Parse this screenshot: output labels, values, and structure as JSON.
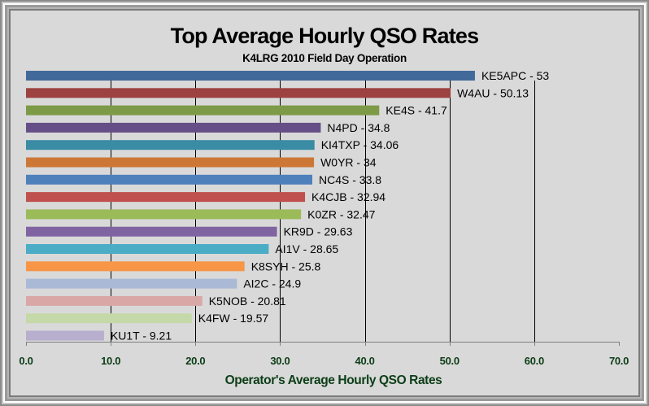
{
  "chart_data": {
    "type": "bar",
    "orientation": "horizontal",
    "title": "Top Average Hourly QSO Rates",
    "subtitle": "K4LRG 2010 Field Day Operation",
    "xlabel": "Operator's Average Hourly QSO Rates",
    "ylabel": "",
    "xlim": [
      0,
      70
    ],
    "x_ticks": [
      0,
      10,
      20,
      30,
      40,
      50,
      60,
      70
    ],
    "x_tick_labels": [
      "0.0",
      "10.0",
      "20.0",
      "30.0",
      "40.0",
      "50.0",
      "60.0",
      "70.0"
    ],
    "grid": "vertical major gridlines",
    "legend": "none",
    "categories": [
      "KE5APC",
      "W4AU",
      "KE4S",
      "N4PD",
      "KI4TXP",
      "W0YR",
      "NC4S",
      "K4CJB",
      "K0ZR",
      "KR9D",
      "AI1V",
      "K8SYH",
      "AI2C",
      "K5NOB",
      "K4FW",
      "KU1T"
    ],
    "values": [
      53,
      50.13,
      41.7,
      34.8,
      34.06,
      34,
      33.8,
      32.94,
      32.47,
      29.63,
      28.65,
      25.8,
      24.9,
      20.81,
      19.57,
      9.21
    ],
    "data_labels": [
      "KE5APC - 53",
      "W4AU - 50.13",
      "KE4S - 41.7",
      "N4PD - 34.8",
      "KI4TXP - 34.06",
      "W0YR - 34",
      "NC4S - 33.8",
      "K4CJB - 32.94",
      "K0ZR - 32.47",
      "KR9D - 29.63",
      "AI1V - 28.65",
      "K8SYH - 25.8",
      "AI2C - 24.9",
      "K5NOB - 20.81",
      "K4FW - 19.57",
      "KU1T - 9.21"
    ],
    "colors": [
      "#416a9b",
      "#9c4240",
      "#7d9a46",
      "#664f87",
      "#3a8ba4",
      "#cd7737",
      "#4e80bc",
      "#c0504d",
      "#9bbb59",
      "#8064a2",
      "#4bacc6",
      "#f79646",
      "#aab9d6",
      "#d9a7a6",
      "#c5d8a8",
      "#b8aecd"
    ]
  },
  "colors": {
    "background": "#d9d9d9",
    "tick_label": "#0b3d16",
    "gridline": "#000000"
  }
}
